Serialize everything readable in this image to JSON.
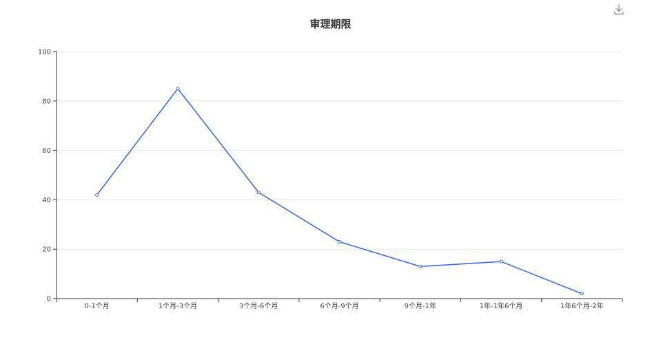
{
  "chart_data": {
    "type": "line",
    "title": "审理期限",
    "categories": [
      "0-1个月",
      "1个月-3个月",
      "3个月-6个月",
      "6个月-9个月",
      "9个月-1年",
      "1年-1年6个月",
      "1年6个月-2年"
    ],
    "values": [
      42,
      85,
      43,
      23,
      13,
      15,
      2
    ],
    "ylim": [
      0,
      100
    ],
    "yticks": [
      0,
      20,
      40,
      60,
      80,
      100
    ],
    "xlabel": "",
    "ylabel": "",
    "grid": true,
    "colors": {
      "line": "#3f6ae8",
      "grid": "#e3e3e3",
      "axis": "#333333"
    }
  },
  "toolbar": {
    "download_icon": "download-icon"
  }
}
